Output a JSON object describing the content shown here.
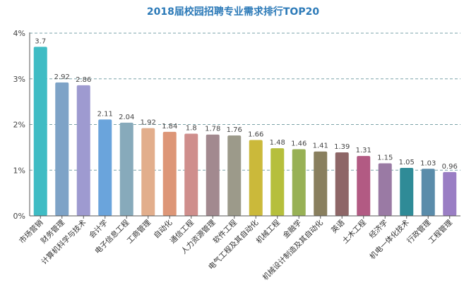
{
  "chart_data": {
    "type": "bar",
    "title": "2018届校园招聘专业需求排行TOP20",
    "xlabel": "",
    "ylabel": "",
    "ylim": [
      0,
      4
    ],
    "yticks": [
      "0%",
      "1%",
      "2%",
      "3%",
      "4%"
    ],
    "grid": "dashed-horizontal",
    "categories": [
      "市场营销",
      "财务管理",
      "计算机科学与技术",
      "会计学",
      "电子信息工程",
      "工商管理",
      "自动化",
      "通信工程",
      "人力资源管理",
      "软件工程",
      "电气工程及其自动化",
      "机械工程",
      "金融学",
      "机械设计制造及其自动化",
      "英语",
      "土木工程",
      "经济学",
      "机电一体化技术",
      "行政管理",
      "工程管理"
    ],
    "values": [
      3.7,
      2.92,
      2.86,
      2.11,
      2.04,
      1.92,
      1.84,
      1.8,
      1.78,
      1.76,
      1.66,
      1.48,
      1.46,
      1.41,
      1.39,
      1.31,
      1.15,
      1.05,
      1.03,
      0.96
    ],
    "colors": [
      "#3fbcc4",
      "#7ea3c7",
      "#9e9ad0",
      "#6aa4dc",
      "#87aabb",
      "#e2ae8c",
      "#dd9677",
      "#cf8e8c",
      "#a2898f",
      "#9c9a8a",
      "#cbb93a",
      "#b6bf3c",
      "#98b155",
      "#897f5e",
      "#8e6667",
      "#b25a83",
      "#9a7aa4",
      "#2f8b97",
      "#5a8caa",
      "#9a7ec4"
    ]
  }
}
